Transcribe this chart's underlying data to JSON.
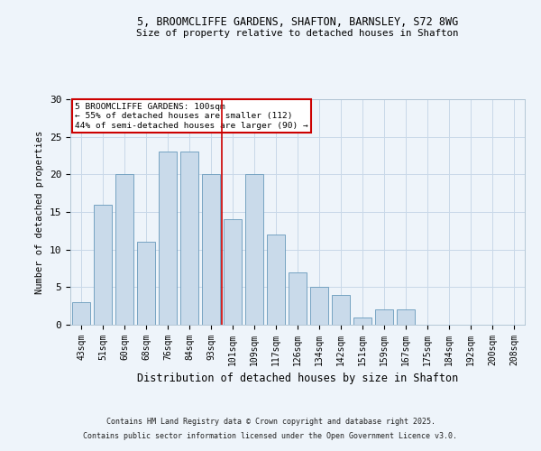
{
  "title1": "5, BROOMCLIFFE GARDENS, SHAFTON, BARNSLEY, S72 8WG",
  "title2": "Size of property relative to detached houses in Shafton",
  "xlabel": "Distribution of detached houses by size in Shafton",
  "ylabel": "Number of detached properties",
  "categories": [
    "43sqm",
    "51sqm",
    "60sqm",
    "68sqm",
    "76sqm",
    "84sqm",
    "93sqm",
    "101sqm",
    "109sqm",
    "117sqm",
    "126sqm",
    "134sqm",
    "142sqm",
    "151sqm",
    "159sqm",
    "167sqm",
    "175sqm",
    "184sqm",
    "192sqm",
    "200sqm",
    "208sqm"
  ],
  "values": [
    3,
    16,
    20,
    11,
    23,
    23,
    20,
    14,
    20,
    12,
    7,
    5,
    4,
    1,
    2,
    2,
    0,
    0,
    0,
    0,
    0
  ],
  "bar_color": "#c9daea",
  "bar_edge_color": "#6699bb",
  "grid_color": "#c8d8e8",
  "background_color": "#eef4fa",
  "red_line_index": 7,
  "annotation_title": "5 BROOMCLIFFE GARDENS: 100sqm",
  "annotation_line1": "← 55% of detached houses are smaller (112)",
  "annotation_line2": "44% of semi-detached houses are larger (90) →",
  "annotation_box_color": "#ffffff",
  "annotation_box_edge": "#cc0000",
  "red_line_color": "#cc0000",
  "ylim": [
    0,
    30
  ],
  "yticks": [
    0,
    5,
    10,
    15,
    20,
    25,
    30
  ],
  "footnote1": "Contains HM Land Registry data © Crown copyright and database right 2025.",
  "footnote2": "Contains public sector information licensed under the Open Government Licence v3.0."
}
